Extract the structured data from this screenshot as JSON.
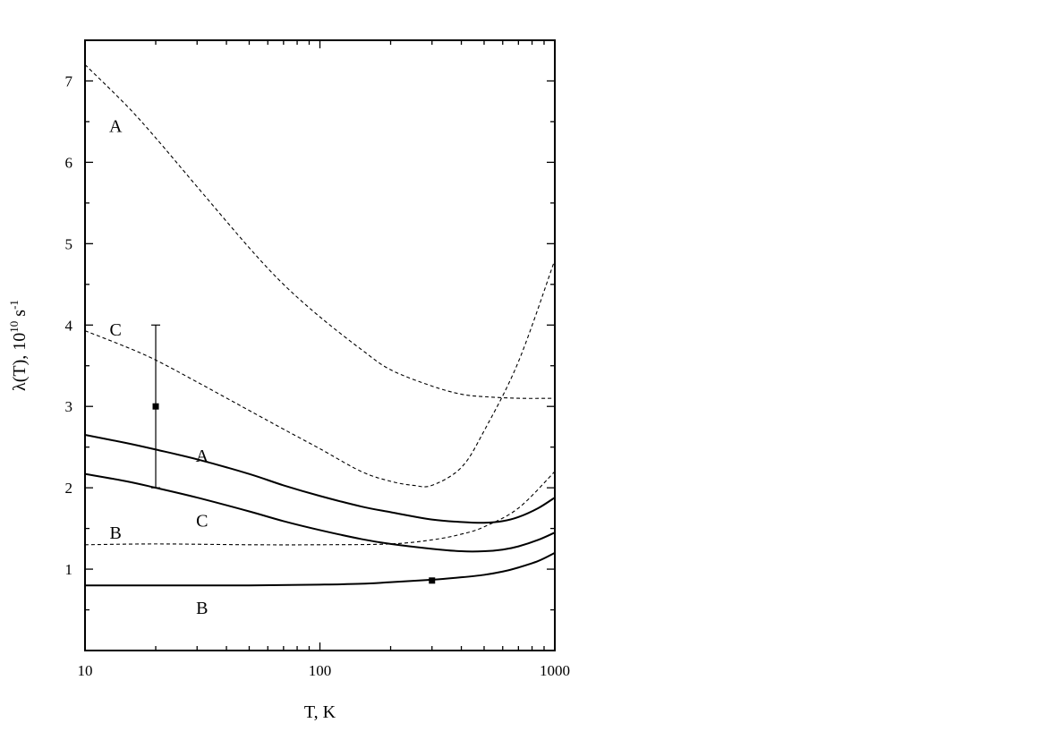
{
  "chart_data": {
    "type": "line",
    "xlabel": "T, K",
    "ylabel": {
      "main": "λ(T), 10",
      "exp1": "10",
      "unit": " s",
      "exp2": "-1"
    },
    "xscale": "log",
    "xlim": [
      10,
      1000
    ],
    "ylim": [
      0,
      7.5
    ],
    "x_ticks": [
      {
        "value": 10,
        "label": "10"
      },
      {
        "value": 100,
        "label": "100"
      },
      {
        "value": 1000,
        "label": "1000"
      }
    ],
    "y_ticks": [
      {
        "value": 1,
        "label": "1"
      },
      {
        "value": 2,
        "label": "2"
      },
      {
        "value": 3,
        "label": "3"
      },
      {
        "value": 4,
        "label": "4"
      },
      {
        "value": 5,
        "label": "5"
      },
      {
        "value": 6,
        "label": "6"
      },
      {
        "value": 7,
        "label": "7"
      }
    ],
    "grid": false,
    "series": [
      {
        "name": "A",
        "style": "dashed",
        "x": [
          10,
          15,
          20,
          30,
          50,
          70,
          100,
          150,
          200,
          300,
          400,
          500,
          700,
          1000
        ],
        "y": [
          7.2,
          6.7,
          6.3,
          5.7,
          4.95,
          4.5,
          4.1,
          3.7,
          3.45,
          3.25,
          3.15,
          3.12,
          3.1,
          3.1
        ]
      },
      {
        "name": "C",
        "style": "dashed",
        "x": [
          10,
          15,
          20,
          30,
          50,
          70,
          100,
          150,
          200,
          250,
          300,
          400,
          500,
          700,
          1000
        ],
        "y": [
          3.93,
          3.73,
          3.57,
          3.3,
          2.95,
          2.72,
          2.48,
          2.2,
          2.08,
          2.03,
          2.03,
          2.25,
          2.7,
          3.55,
          4.8
        ]
      },
      {
        "name": "B",
        "style": "dashed",
        "x": [
          10,
          20,
          50,
          100,
          200,
          300,
          400,
          500,
          700,
          1000
        ],
        "y": [
          1.3,
          1.31,
          1.3,
          1.3,
          1.31,
          1.36,
          1.43,
          1.52,
          1.75,
          2.2
        ]
      },
      {
        "name": "A",
        "style": "solid",
        "x": [
          10,
          15,
          20,
          30,
          50,
          70,
          100,
          150,
          200,
          300,
          400,
          500,
          600,
          700,
          850,
          1000
        ],
        "y": [
          2.65,
          2.55,
          2.47,
          2.35,
          2.17,
          2.03,
          1.9,
          1.77,
          1.7,
          1.61,
          1.58,
          1.57,
          1.59,
          1.64,
          1.75,
          1.88
        ]
      },
      {
        "name": "C",
        "style": "solid",
        "x": [
          10,
          15,
          20,
          30,
          50,
          70,
          100,
          150,
          200,
          300,
          400,
          500,
          600,
          700,
          850,
          1000
        ],
        "y": [
          2.17,
          2.08,
          2.0,
          1.88,
          1.71,
          1.59,
          1.48,
          1.37,
          1.31,
          1.25,
          1.22,
          1.22,
          1.24,
          1.28,
          1.36,
          1.45
        ]
      },
      {
        "name": "B",
        "style": "solid",
        "x": [
          10,
          20,
          50,
          100,
          150,
          200,
          300,
          400,
          500,
          600,
          700,
          850,
          1000
        ],
        "y": [
          0.8,
          0.8,
          0.8,
          0.81,
          0.82,
          0.84,
          0.87,
          0.9,
          0.93,
          0.97,
          1.02,
          1.1,
          1.2
        ]
      }
    ],
    "points": [
      {
        "x": 20,
        "y": 3.0,
        "yerr_low": 2.0,
        "yerr_high": 4.0
      },
      {
        "x": 300,
        "y": 0.86
      }
    ],
    "annotations": [
      {
        "text": "A",
        "x": 13.5,
        "y": 6.45
      },
      {
        "text": "C",
        "x": 13.5,
        "y": 3.95
      },
      {
        "text": "A",
        "x": 31.5,
        "y": 2.4
      },
      {
        "text": "C",
        "x": 31.5,
        "y": 1.6
      },
      {
        "text": "B",
        "x": 13.5,
        "y": 1.45
      },
      {
        "text": "B",
        "x": 31.5,
        "y": 0.53
      }
    ]
  }
}
